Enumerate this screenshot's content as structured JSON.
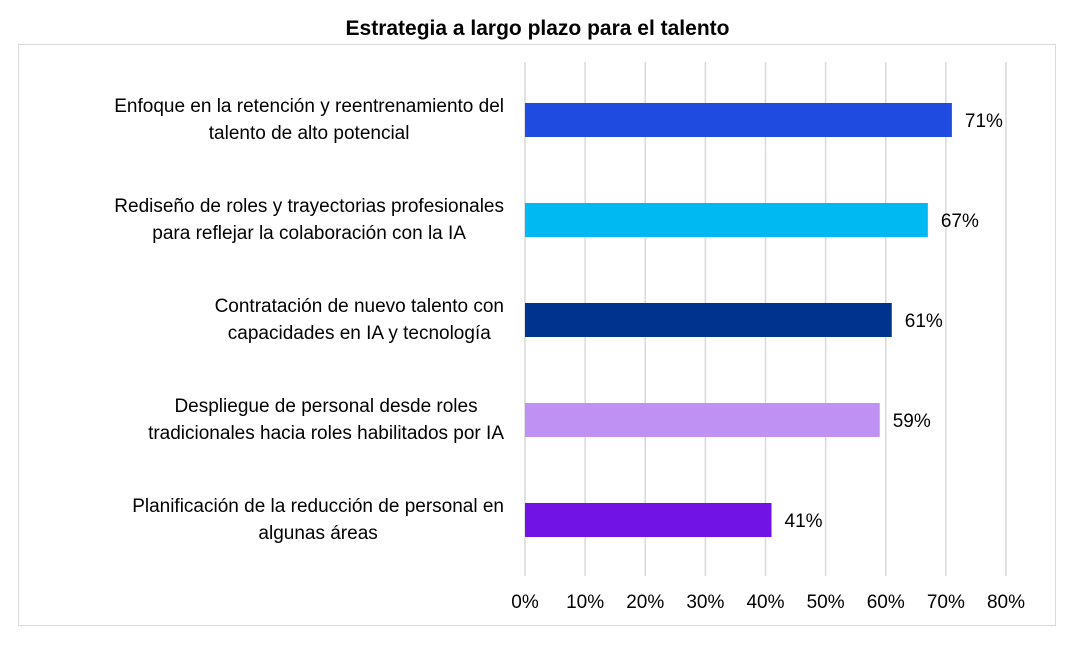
{
  "chart_data": {
    "type": "bar",
    "orientation": "horizontal",
    "title": "Estrategia a largo plazo para el talento",
    "categories": [
      [
        "Enfoque en la retención y reentrenamiento del",
        "talento de alto potencial"
      ],
      [
        "Rediseño de roles y trayectorias profesionales",
        "para reflejar la colaboración con la IA"
      ],
      [
        "Contratación de nuevo talento con",
        "capacidades en IA y tecnología"
      ],
      [
        "Despliegue de personal desde roles",
        "tradicionales hacia roles habilitados por IA"
      ],
      [
        "Planificación de la reducción de personal en",
        "algunas áreas"
      ]
    ],
    "values": [
      71,
      67,
      61,
      59,
      41
    ],
    "data_labels": [
      "71%",
      "67%",
      "61%",
      "59%",
      "41%"
    ],
    "colors": [
      "#1F4BE0",
      "#00B8F2",
      "#00338D",
      "#BE91F2",
      "#7213E6"
    ],
    "xlim": [
      0,
      80
    ],
    "xticks": [
      0,
      10,
      20,
      30,
      40,
      50,
      60,
      70,
      80
    ],
    "xtick_labels": [
      "0%",
      "10%",
      "20%",
      "30%",
      "40%",
      "50%",
      "60%",
      "70%",
      "80%"
    ],
    "grid": true,
    "legend": "none",
    "xlabel": "",
    "ylabel": ""
  }
}
